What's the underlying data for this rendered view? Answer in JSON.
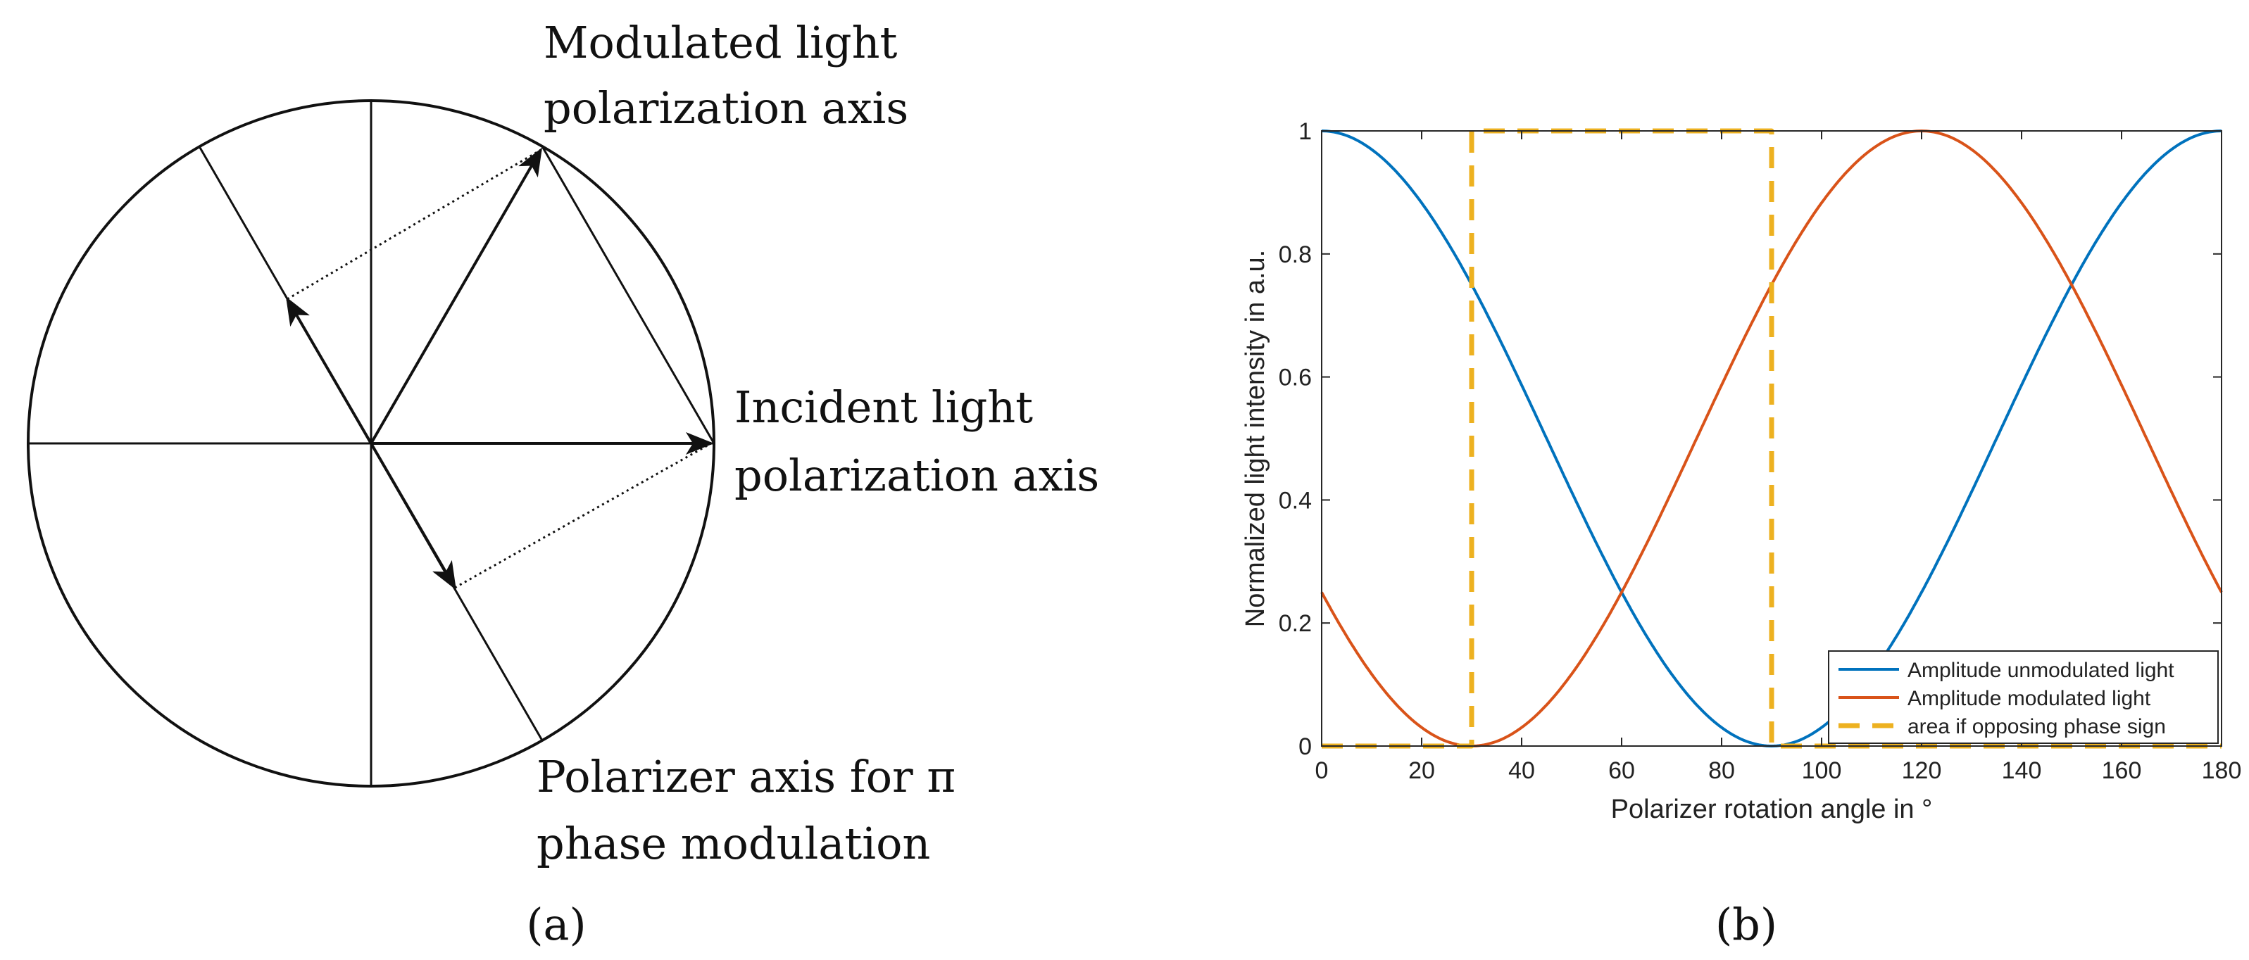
{
  "figure": {
    "panel_a_label": "(a)",
    "panel_b_label": "(b)"
  },
  "diagram": {
    "labels": {
      "modulated_line1": "Modulated light",
      "modulated_line2": "polarization axis",
      "incident_line1": "Incident light",
      "incident_line2": "polarization axis",
      "polarizer_line1": "Polarizer axis for π",
      "polarizer_line2": "phase modulation"
    }
  },
  "colors": {
    "series_unmodulated": "#0072BD",
    "series_modulated": "#D95319",
    "series_area": "#EDB120",
    "axis": "#262626",
    "diagram_ink": "#111111"
  },
  "chart_data": {
    "type": "line",
    "xlabel": "Polarizer rotation angle in °",
    "ylabel": "Normalized light intensity in a.u.",
    "xlim": [
      0,
      180
    ],
    "ylim": [
      0,
      1
    ],
    "xticks": [
      0,
      20,
      40,
      60,
      80,
      100,
      120,
      140,
      160,
      180
    ],
    "yticks": [
      0,
      0.2,
      0.4,
      0.6,
      0.8,
      1
    ],
    "ytick_labels": [
      "0",
      "0.2",
      "0.4",
      "0.6",
      "0.8",
      "1"
    ],
    "grid": false,
    "legend_position": "bottom-right",
    "series": [
      {
        "name": "Amplitude unmodulated light",
        "function": "cos^2(x)",
        "x": [
          0,
          10,
          20,
          30,
          40,
          50,
          60,
          70,
          80,
          90,
          100,
          110,
          120,
          130,
          140,
          150,
          160,
          170,
          180
        ],
        "values": [
          1,
          0.97,
          0.883,
          0.75,
          0.587,
          0.413,
          0.25,
          0.117,
          0.03,
          0,
          0.03,
          0.117,
          0.25,
          0.413,
          0.587,
          0.75,
          0.883,
          0.97,
          1
        ],
        "style": "solid"
      },
      {
        "name": "Amplitude modulated light",
        "function": "cos^2(x - 120°)",
        "x": [
          0,
          10,
          20,
          30,
          40,
          50,
          60,
          70,
          80,
          90,
          100,
          110,
          120,
          130,
          140,
          150,
          160,
          170,
          180
        ],
        "values": [
          0.25,
          0.117,
          0.03,
          0,
          0.03,
          0.117,
          0.25,
          0.413,
          0.587,
          0.75,
          0.883,
          0.97,
          1,
          0.97,
          0.883,
          0.75,
          0.587,
          0.413,
          0.25
        ],
        "style": "solid"
      },
      {
        "name": "area if opposing phase sign",
        "x": [
          0,
          30,
          30,
          90,
          90,
          180
        ],
        "values": [
          0,
          0,
          1,
          1,
          0,
          0
        ],
        "style": "dashed"
      }
    ]
  }
}
